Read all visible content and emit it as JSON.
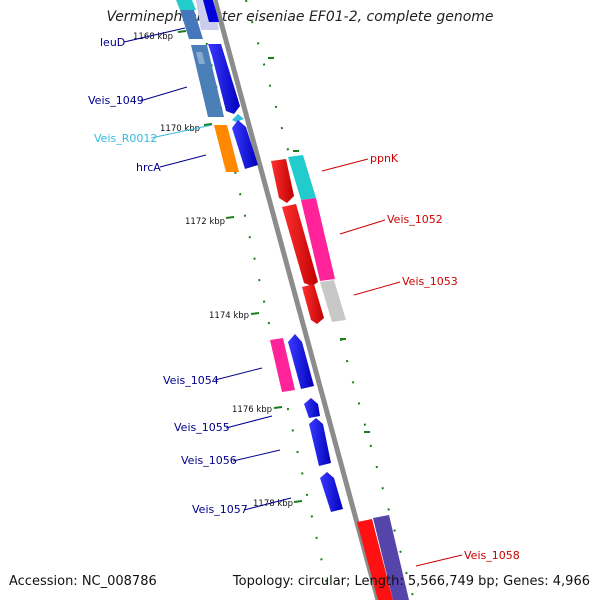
{
  "title": "Verminephrobacter eiseniae EF01-2, complete genome",
  "footer": {
    "accession": "Accession: NC_008786",
    "summary": "Topology: circular; Length: 5,566,749 bp; Genes: 4,966"
  },
  "colors": {
    "backbone": "#8c8c8c",
    "tick": "#1a7f1a",
    "label_forward": "#00008b",
    "label_forward_light": "#33bbdd",
    "label_reverse": "#cc0000"
  },
  "ticks": [
    "1168 kbp",
    "1170 kbp",
    "1172 kbp",
    "1174 kbp",
    "1176 kbp",
    "1178 kbp"
  ],
  "genes": [
    {
      "name": "leuD",
      "strand": "forward",
      "color": "#0000ee"
    },
    {
      "name": "Veis_1049",
      "strand": "forward",
      "color": "#0000ee"
    },
    {
      "name": "Veis_R0012",
      "strand": "forward",
      "color": "#33bbdd"
    },
    {
      "name": "hrcA",
      "strand": "forward",
      "color": "#0000ee"
    },
    {
      "name": "ppnK",
      "strand": "reverse",
      "color": "#ee0000"
    },
    {
      "name": "Veis_1052",
      "strand": "reverse",
      "color": "#ee0000"
    },
    {
      "name": "Veis_1053",
      "strand": "reverse",
      "color": "#ee0000"
    },
    {
      "name": "Veis_1054",
      "strand": "forward",
      "color": "#0000ee"
    },
    {
      "name": "Veis_1055",
      "strand": "forward",
      "color": "#0000ee"
    },
    {
      "name": "Veis_1056",
      "strand": "forward",
      "color": "#0000ee"
    },
    {
      "name": "Veis_1057",
      "strand": "forward",
      "color": "#0000ee"
    },
    {
      "name": "Veis_1058",
      "strand": "reverse",
      "color": "#ee0000"
    }
  ]
}
